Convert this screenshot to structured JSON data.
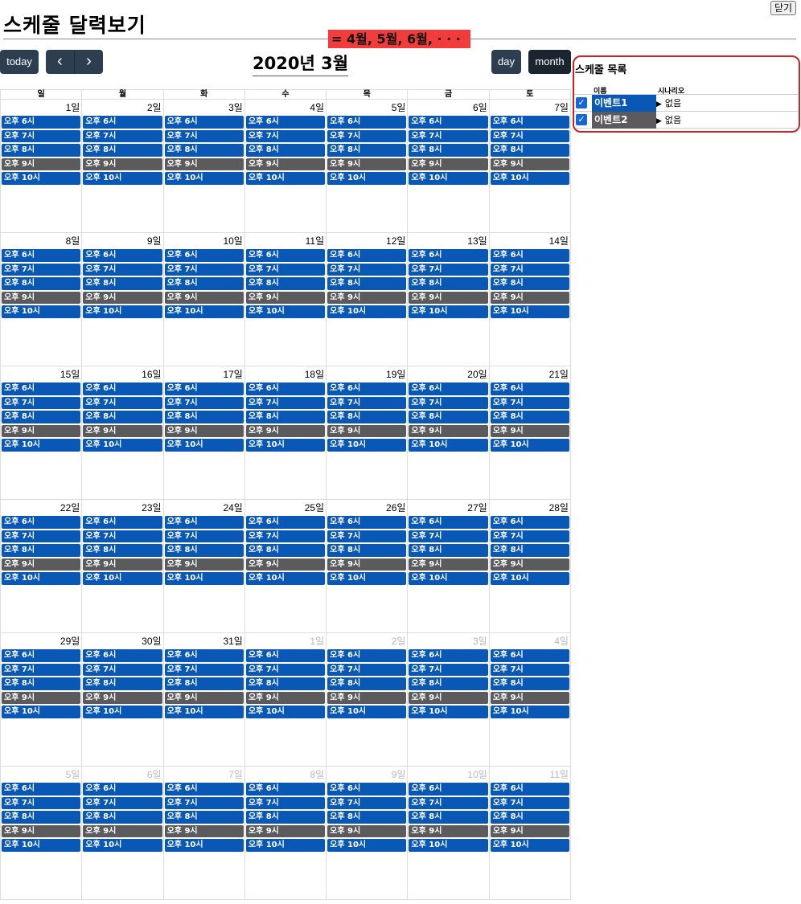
{
  "page": {
    "title": "스케줄 달력보기",
    "close_label": "닫기",
    "overlay_note": "= 4월, 5월, 6월, · · ·"
  },
  "toolbar": {
    "today_label": "today",
    "prev_icon": "‹",
    "next_icon": "›",
    "month_title": "2020년 3월",
    "day_label": "day",
    "month_label": "month"
  },
  "calendar": {
    "weekdays": [
      "일",
      "월",
      "화",
      "수",
      "목",
      "금",
      "토"
    ],
    "events": [
      {
        "label": "오후 6시",
        "color": "#0a58b5"
      },
      {
        "label": "오후 7시",
        "color": "#0a58b5"
      },
      {
        "label": "오후 8시",
        "color": "#0a58b5"
      },
      {
        "label": "오후 9시",
        "color": "#5b5b5e"
      },
      {
        "label": "오후 10시",
        "color": "#0a58b5"
      }
    ],
    "weeks": [
      [
        {
          "d": "1일",
          "o": false
        },
        {
          "d": "2일",
          "o": false
        },
        {
          "d": "3일",
          "o": false
        },
        {
          "d": "4일",
          "o": false
        },
        {
          "d": "5일",
          "o": false
        },
        {
          "d": "6일",
          "o": false
        },
        {
          "d": "7일",
          "o": false
        }
      ],
      [
        {
          "d": "8일",
          "o": false
        },
        {
          "d": "9일",
          "o": false
        },
        {
          "d": "10일",
          "o": false
        },
        {
          "d": "11일",
          "o": false
        },
        {
          "d": "12일",
          "o": false
        },
        {
          "d": "13일",
          "o": false
        },
        {
          "d": "14일",
          "o": false
        }
      ],
      [
        {
          "d": "15일",
          "o": false
        },
        {
          "d": "16일",
          "o": false
        },
        {
          "d": "17일",
          "o": false
        },
        {
          "d": "18일",
          "o": false
        },
        {
          "d": "19일",
          "o": false
        },
        {
          "d": "20일",
          "o": false
        },
        {
          "d": "21일",
          "o": false
        }
      ],
      [
        {
          "d": "22일",
          "o": false
        },
        {
          "d": "23일",
          "o": false
        },
        {
          "d": "24일",
          "o": false
        },
        {
          "d": "25일",
          "o": false
        },
        {
          "d": "26일",
          "o": false
        },
        {
          "d": "27일",
          "o": false
        },
        {
          "d": "28일",
          "o": false
        }
      ],
      [
        {
          "d": "29일",
          "o": false
        },
        {
          "d": "30일",
          "o": false
        },
        {
          "d": "31일",
          "o": false
        },
        {
          "d": "1일",
          "o": true
        },
        {
          "d": "2일",
          "o": true
        },
        {
          "d": "3일",
          "o": true
        },
        {
          "d": "4일",
          "o": true
        }
      ],
      [
        {
          "d": "5일",
          "o": true
        },
        {
          "d": "6일",
          "o": true
        },
        {
          "d": "7일",
          "o": true
        },
        {
          "d": "8일",
          "o": true
        },
        {
          "d": "9일",
          "o": true
        },
        {
          "d": "10일",
          "o": true
        },
        {
          "d": "11일",
          "o": true
        }
      ]
    ]
  },
  "schedule_panel": {
    "title": "스케줄 목록",
    "col_name": "이름",
    "col_scenario": "시나리오",
    "rows": [
      {
        "name": "이벤트1",
        "scenario": "없음",
        "checked": true,
        "color": "#0a58b5"
      },
      {
        "name": "이벤트2",
        "scenario": "없음",
        "checked": true,
        "color": "#5b5b5e"
      }
    ]
  }
}
